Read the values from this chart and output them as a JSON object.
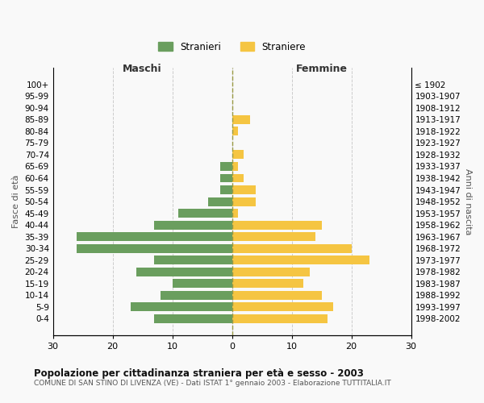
{
  "age_groups": [
    "100+",
    "95-99",
    "90-94",
    "85-89",
    "80-84",
    "75-79",
    "70-74",
    "65-69",
    "60-64",
    "55-59",
    "50-54",
    "45-49",
    "40-44",
    "35-39",
    "30-34",
    "25-29",
    "20-24",
    "15-19",
    "10-14",
    "5-9",
    "0-4"
  ],
  "birth_years": [
    "≤ 1902",
    "1903-1907",
    "1908-1912",
    "1913-1917",
    "1918-1922",
    "1923-1927",
    "1928-1932",
    "1933-1937",
    "1938-1942",
    "1943-1947",
    "1948-1952",
    "1953-1957",
    "1958-1962",
    "1963-1967",
    "1968-1972",
    "1973-1977",
    "1978-1982",
    "1983-1987",
    "1988-1992",
    "1993-1997",
    "1998-2002"
  ],
  "maschi": [
    0,
    0,
    0,
    0,
    0,
    0,
    0,
    2,
    2,
    2,
    4,
    9,
    13,
    26,
    26,
    13,
    16,
    10,
    12,
    17,
    13
  ],
  "femmine": [
    0,
    0,
    0,
    3,
    1,
    0,
    2,
    1,
    2,
    4,
    4,
    1,
    15,
    14,
    20,
    23,
    13,
    12,
    15,
    17,
    16
  ],
  "color_maschi": "#6a9e5e",
  "color_femmine": "#f5c542",
  "title_main": "Popolazione per cittadinanza straniera per età e sesso - 2003",
  "title_sub": "COMUNE DI SAN STINO DI LIVENZA (VE) - Dati ISTAT 1° gennaio 2003 - Elaborazione TUTTITALIA.IT",
  "legend_maschi": "Stranieri",
  "legend_femmine": "Straniere",
  "xlabel_left": "Maschi",
  "xlabel_right": "Femmine",
  "ylabel_left": "Fasce di età",
  "ylabel_right": "Anni di nascita",
  "xlim": 30,
  "background_color": "#f9f9f9",
  "grid_color": "#cccccc"
}
